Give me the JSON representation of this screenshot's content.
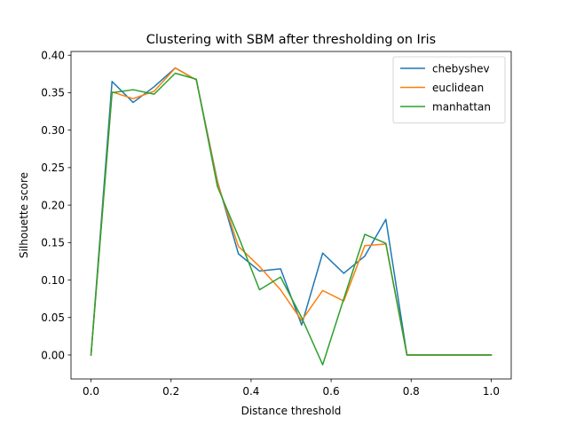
{
  "chart_data": {
    "type": "line",
    "title": "Clustering with SBM after thresholding on Iris",
    "xlabel": "Distance threshold",
    "ylabel": "Silhouette score",
    "xlim": [
      -0.05,
      1.05
    ],
    "ylim": [
      -0.032,
      0.405
    ],
    "xticks": [
      0.0,
      0.2,
      0.4,
      0.6,
      0.8,
      1.0
    ],
    "xtick_labels": [
      "0.0",
      "0.2",
      "0.4",
      "0.6",
      "0.8",
      "1.0"
    ],
    "yticks": [
      0.0,
      0.05,
      0.1,
      0.15,
      0.2,
      0.25,
      0.3,
      0.35,
      0.4
    ],
    "ytick_labels": [
      "0.00",
      "0.05",
      "0.10",
      "0.15",
      "0.20",
      "0.25",
      "0.30",
      "0.35",
      "0.40"
    ],
    "grid": false,
    "legend_position": "top-right",
    "x": [
      0.0,
      0.0526,
      0.1053,
      0.1579,
      0.2105,
      0.2632,
      0.3158,
      0.3684,
      0.4211,
      0.4737,
      0.5263,
      0.5789,
      0.6316,
      0.6842,
      0.7368,
      0.7895,
      0.8421,
      0.8947,
      0.9474,
      1.0
    ],
    "series": [
      {
        "name": "chebyshev",
        "color": "#1f77b4",
        "values": [
          0.0,
          0.365,
          0.337,
          0.358,
          0.383,
          0.367,
          0.232,
          0.135,
          0.112,
          0.115,
          0.04,
          0.136,
          0.109,
          0.132,
          0.181,
          0.0,
          0.0,
          0.0,
          0.0,
          0.0
        ]
      },
      {
        "name": "euclidean",
        "color": "#ff7f0e",
        "values": [
          0.0,
          0.351,
          0.342,
          0.352,
          0.383,
          0.367,
          0.23,
          0.145,
          0.118,
          0.087,
          0.046,
          0.086,
          0.072,
          0.146,
          0.148,
          0.0,
          0.0,
          0.0,
          0.0,
          0.0
        ]
      },
      {
        "name": "manhattan",
        "color": "#2ca02c",
        "values": [
          0.0,
          0.35,
          0.354,
          0.348,
          0.376,
          0.368,
          0.225,
          0.158,
          0.087,
          0.104,
          0.05,
          -0.013,
          0.075,
          0.161,
          0.149,
          0.0,
          0.0,
          0.0,
          0.0,
          0.0
        ]
      }
    ]
  }
}
